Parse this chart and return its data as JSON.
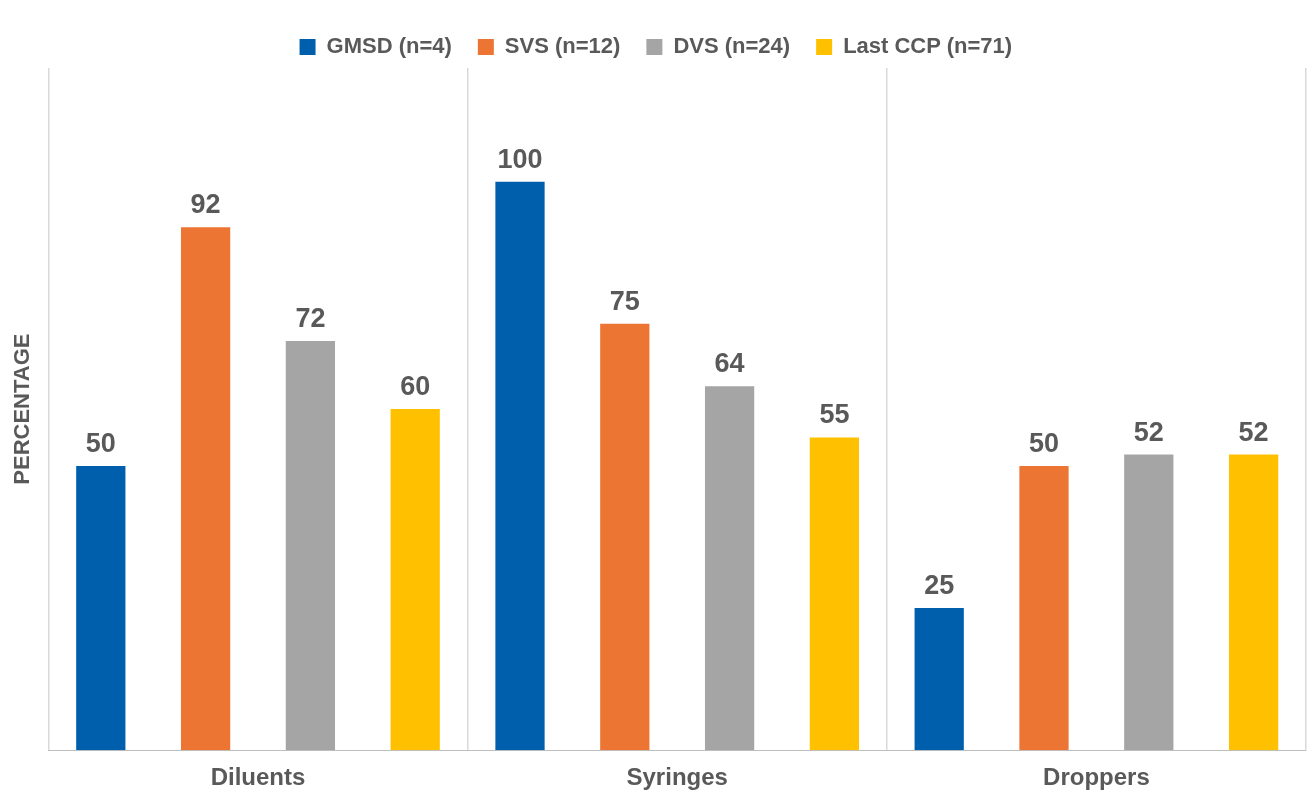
{
  "chart_data": {
    "type": "bar",
    "ylabel": "PERCENTAGE",
    "categories": [
      "Diluents",
      "Syringes",
      "Droppers"
    ],
    "series": [
      {
        "name": "GMSD (n=4)",
        "color": "#005fac",
        "values": [
          50,
          100,
          25
        ]
      },
      {
        "name": "SVS (n=12)",
        "color": "#ed7533",
        "values": [
          92,
          75,
          50
        ]
      },
      {
        "name": "DVS (n=24)",
        "color": "#a5a5a5",
        "values": [
          72,
          64,
          52
        ]
      },
      {
        "name": "Last CCP (n=71)",
        "color": "#ffc000",
        "values": [
          60,
          55,
          52
        ]
      }
    ],
    "data_labels": true,
    "grid": "x",
    "legend": "top"
  }
}
